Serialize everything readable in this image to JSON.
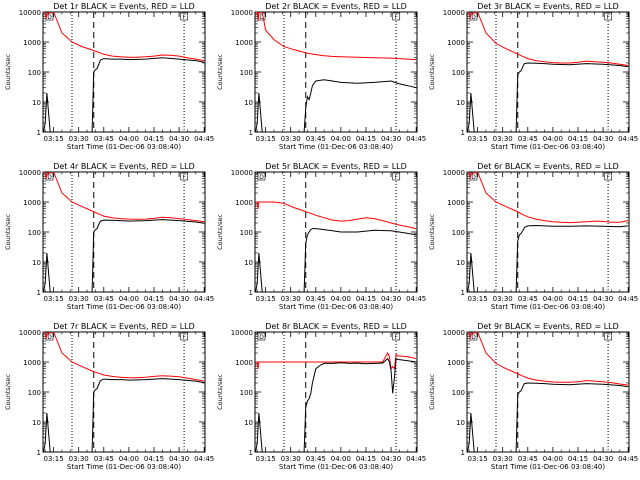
{
  "chart_data": {
    "type": "line",
    "xlabel": "Start Time (01-Dec-06 03:08:40)",
    "ylabel": "Counts/sec",
    "x_ticks": [
      "03:15",
      "03:30",
      "03:45",
      "04:00",
      "04:15",
      "04:30",
      "04:45"
    ],
    "x_tick_minutes": [
      15,
      30,
      45,
      60,
      75,
      90,
      105
    ],
    "xlim_minutes": [
      8.67,
      105.5
    ],
    "y_scale": "log",
    "y_ticks": [
      "1",
      "10",
      "100",
      "1000",
      "10000"
    ],
    "ylim": [
      1,
      10000
    ],
    "vertical_markers_minutes": {
      "dotted": [
        26,
        93
      ],
      "dashed": [
        39
      ]
    },
    "box_labels": [
      "D",
      "F"
    ],
    "series_colors": {
      "events": "#000000",
      "lld": "#ff0000"
    },
    "panels": [
      {
        "title": "Det 1r BLACK = Events, RED = LLD",
        "series": [
          {
            "color": "#ff0000",
            "x": [
              9,
              10,
              10.5,
              11,
              13,
              15,
              20,
              26,
              32,
              38,
              42,
              45,
              50,
              55,
              60,
              65,
              70,
              75,
              80,
              85,
              90,
              95,
              100,
              105
            ],
            "y": [
              10000,
              10000,
              6000,
              8000,
              10000,
              10000,
              2000,
              1000,
              700,
              540,
              450,
              390,
              340,
              320,
              310,
              310,
              320,
              340,
              370,
              360,
              340,
              300,
              270,
              240
            ]
          },
          {
            "color": "#000000",
            "x": [
              9,
              10,
              11,
              13,
              26,
              38,
              39,
              40,
              41,
              42,
              43,
              45,
              50,
              55,
              60,
              70,
              80,
              90,
              100,
              105
            ],
            "y": [
              1,
              2,
              20,
              1,
              1,
              1,
              100,
              120,
              130,
              180,
              250,
              280,
              270,
              270,
              260,
              270,
              300,
              270,
              240,
              210
            ]
          }
        ]
      },
      {
        "title": "Det 2r BLACK = Events, RED = LLD",
        "series": [
          {
            "color": "#ff0000",
            "x": [
              9,
              10,
              10.5,
              11,
              13,
              15,
              20,
              26,
              30,
              35,
              40,
              45,
              50,
              55,
              60,
              70,
              80,
              90,
              100,
              105
            ],
            "y": [
              10000,
              10000,
              5000,
              10000,
              10000,
              2500,
              1200,
              700,
              600,
              500,
              420,
              380,
              350,
              330,
              320,
              310,
              300,
              290,
              270,
              260
            ]
          },
          {
            "color": "#000000",
            "x": [
              9,
              10,
              11,
              13,
              26,
              38,
              39,
              40,
              41,
              42,
              43,
              45,
              50,
              55,
              60,
              70,
              80,
              90,
              95,
              100,
              105
            ],
            "y": [
              1,
              2,
              20,
              1,
              1,
              1,
              6,
              15,
              12,
              20,
              35,
              50,
              55,
              50,
              45,
              42,
              45,
              50,
              40,
              35,
              30
            ]
          }
        ]
      },
      {
        "title": "Det 3r BLACK = Events, RED = LLD",
        "series": [
          {
            "color": "#ff0000",
            "x": [
              9,
              10,
              10.5,
              11,
              13,
              15,
              20,
              26,
              32,
              38,
              42,
              45,
              50,
              55,
              60,
              65,
              70,
              75,
              80,
              85,
              90,
              95,
              100,
              105
            ],
            "y": [
              10000,
              10000,
              6000,
              8000,
              10000,
              10000,
              2000,
              900,
              600,
              420,
              330,
              280,
              240,
              220,
              205,
              200,
              200,
              210,
              230,
              220,
              210,
              200,
              180,
              165
            ]
          },
          {
            "color": "#000000",
            "x": [
              9,
              10,
              11,
              13,
              26,
              38,
              39,
              40,
              41,
              42,
              43,
              45,
              50,
              55,
              60,
              70,
              80,
              90,
              100,
              105
            ],
            "y": [
              1,
              2,
              20,
              1,
              1,
              1,
              80,
              100,
              110,
              150,
              190,
              200,
              195,
              190,
              180,
              175,
              190,
              180,
              165,
              150
            ]
          }
        ]
      },
      {
        "title": "Det 4r BLACK = Events, RED = LLD",
        "series": [
          {
            "color": "#ff0000",
            "x": [
              9,
              10,
              10.5,
              11,
              13,
              15,
              20,
              26,
              32,
              38,
              42,
              45,
              50,
              55,
              60,
              65,
              70,
              75,
              80,
              85,
              90,
              95,
              100,
              105
            ],
            "y": [
              10000,
              10000,
              6000,
              8000,
              10000,
              10000,
              2000,
              1000,
              700,
              500,
              400,
              340,
              300,
              280,
              270,
              265,
              270,
              285,
              310,
              300,
              280,
              260,
              240,
              220
            ]
          },
          {
            "color": "#000000",
            "x": [
              9,
              10,
              11,
              13,
              26,
              38,
              39,
              40,
              41,
              42,
              43,
              45,
              50,
              55,
              60,
              70,
              80,
              90,
              100,
              105
            ],
            "y": [
              1,
              2,
              20,
              1,
              1,
              1,
              100,
              120,
              130,
              180,
              230,
              250,
              245,
              240,
              230,
              240,
              260,
              240,
              215,
              195
            ]
          }
        ]
      },
      {
        "title": "Det 5r BLACK = Events, RED = LLD",
        "series": [
          {
            "color": "#ff0000",
            "x": [
              9,
              10,
              10.5,
              11,
              13,
              15,
              20,
              26,
              32,
              38,
              42,
              45,
              50,
              55,
              60,
              65,
              70,
              75,
              80,
              85,
              90,
              95,
              100,
              105
            ],
            "y": [
              1000,
              1000,
              600,
              1000,
              1000,
              1000,
              1000,
              900,
              650,
              500,
              420,
              360,
              300,
              250,
              230,
              240,
              270,
              300,
              280,
              240,
              200,
              170,
              150,
              130
            ]
          },
          {
            "color": "#000000",
            "x": [
              9,
              10,
              11,
              13,
              26,
              38,
              39,
              40,
              41,
              42,
              43,
              45,
              50,
              55,
              60,
              70,
              80,
              90,
              100,
              105
            ],
            "y": [
              1,
              2,
              20,
              1,
              1,
              1,
              40,
              80,
              100,
              120,
              130,
              130,
              120,
              110,
              100,
              100,
              115,
              110,
              90,
              80
            ]
          }
        ]
      },
      {
        "title": "Det 6r BLACK = Events, RED = LLD",
        "series": [
          {
            "color": "#ff0000",
            "x": [
              9,
              10,
              10.5,
              11,
              13,
              15,
              20,
              26,
              32,
              38,
              42,
              45,
              50,
              55,
              60,
              65,
              70,
              75,
              80,
              85,
              90,
              95,
              100,
              105
            ],
            "y": [
              10000,
              10000,
              6000,
              8000,
              10000,
              10000,
              2000,
              1000,
              700,
              500,
              380,
              320,
              270,
              240,
              220,
              210,
              205,
              210,
              220,
              230,
              225,
              210,
              210,
              240
            ]
          },
          {
            "color": "#000000",
            "x": [
              9,
              10,
              11,
              13,
              26,
              38,
              39,
              40,
              41,
              42,
              43,
              45,
              50,
              55,
              60,
              70,
              80,
              90,
              100,
              105
            ],
            "y": [
              1,
              2,
              20,
              1,
              1,
              1,
              50,
              80,
              90,
              110,
              140,
              160,
              165,
              160,
              155,
              155,
              160,
              155,
              150,
              160
            ]
          }
        ]
      },
      {
        "title": "Det 7r BLACK = Events, RED = LLD",
        "series": [
          {
            "color": "#ff0000",
            "x": [
              9,
              10,
              10.5,
              11,
              13,
              15,
              20,
              26,
              32,
              38,
              42,
              45,
              50,
              55,
              60,
              65,
              70,
              75,
              80,
              85,
              90,
              95,
              100,
              105
            ],
            "y": [
              10000,
              10000,
              6000,
              8000,
              10000,
              10000,
              2000,
              1000,
              700,
              500,
              420,
              370,
              330,
              310,
              300,
              300,
              310,
              330,
              350,
              340,
              320,
              290,
              260,
              230
            ]
          },
          {
            "color": "#000000",
            "x": [
              9,
              10,
              11,
              13,
              26,
              38,
              39,
              40,
              41,
              42,
              43,
              45,
              50,
              55,
              60,
              70,
              80,
              90,
              100,
              105
            ],
            "y": [
              1,
              2,
              20,
              1,
              1,
              1,
              100,
              120,
              130,
              180,
              240,
              270,
              260,
              260,
              250,
              260,
              280,
              260,
              230,
              205
            ]
          }
        ]
      },
      {
        "title": "Det 8r BLACK = Events, RED = LLD",
        "series": [
          {
            "color": "#ff0000",
            "x": [
              9,
              10,
              10.5,
              11,
              13,
              15,
              20,
              26,
              32,
              38,
              42,
              45,
              50,
              55,
              60,
              65,
              70,
              75,
              80,
              85,
              88,
              89,
              90,
              91,
              92,
              93,
              94,
              95,
              100,
              105
            ],
            "y": [
              1000,
              1000,
              600,
              1000,
              1000,
              1000,
              1000,
              1000,
              1000,
              1000,
              1000,
              1000,
              1000,
              1000,
              1000,
              1000,
              1000,
              1000,
              1000,
              1000,
              2000,
              1500,
              600,
              700,
              600,
              1800,
              1600,
              1600,
              1500,
              1300
            ]
          },
          {
            "color": "#000000",
            "x": [
              9,
              10,
              11,
              13,
              26,
              38,
              39,
              40,
              41,
              42,
              43,
              45,
              48,
              50,
              55,
              60,
              65,
              70,
              75,
              80,
              85,
              88,
              89,
              90,
              91,
              92,
              93,
              94,
              95,
              100,
              105
            ],
            "y": [
              1,
              2,
              20,
              1,
              1,
              1,
              30,
              50,
              60,
              90,
              200,
              600,
              800,
              900,
              900,
              950,
              900,
              920,
              880,
              900,
              920,
              1300,
              1000,
              500,
              90,
              300,
              1300,
              1200,
              1200,
              1100,
              1000
            ]
          }
        ]
      },
      {
        "title": "Det 9r BLACK = Events, RED = LLD",
        "series": [
          {
            "color": "#ff0000",
            "x": [
              9,
              10,
              10.5,
              11,
              13,
              15,
              20,
              26,
              32,
              38,
              42,
              45,
              50,
              55,
              60,
              65,
              70,
              75,
              80,
              85,
              90,
              95,
              100,
              105
            ],
            "y": [
              10000,
              10000,
              6000,
              8000,
              10000,
              10000,
              2000,
              900,
              600,
              430,
              340,
              290,
              250,
              230,
              215,
              210,
              210,
              220,
              240,
              230,
              220,
              205,
              185,
              170
            ]
          },
          {
            "color": "#000000",
            "x": [
              9,
              10,
              11,
              13,
              26,
              38,
              39,
              40,
              41,
              42,
              43,
              45,
              50,
              55,
              60,
              70,
              80,
              90,
              100,
              105
            ],
            "y": [
              1,
              2,
              20,
              1,
              1,
              1,
              80,
              100,
              110,
              150,
              190,
              200,
              195,
              190,
              180,
              175,
              190,
              180,
              165,
              150
            ]
          }
        ]
      }
    ]
  }
}
